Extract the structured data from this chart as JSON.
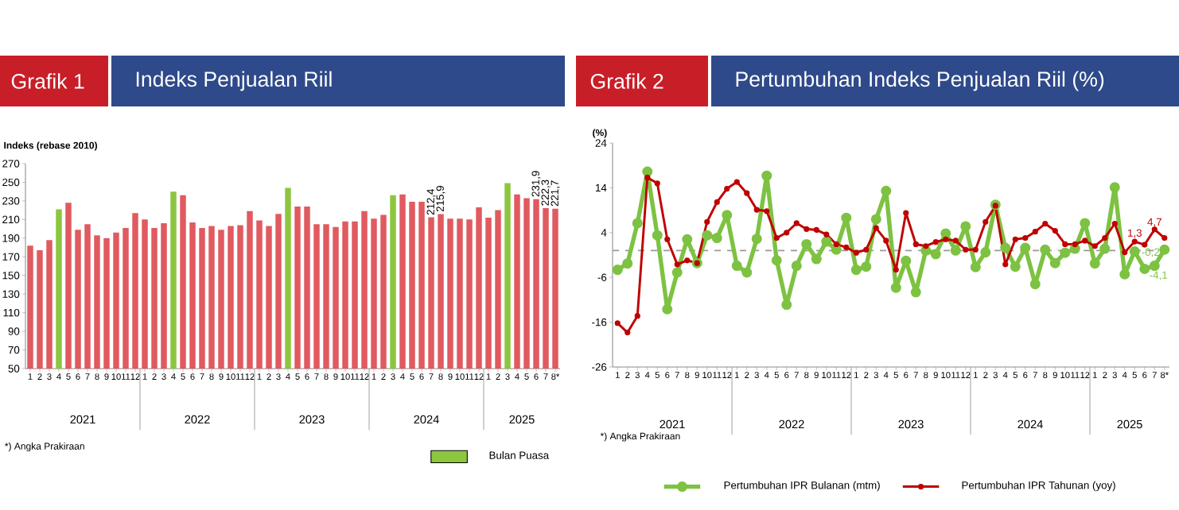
{
  "chart_data": [
    {
      "type": "bar",
      "title": "Grafik 1",
      "subtitle": "Indeks Penjualan Riil",
      "ylabel": "Indeks (rebase 2010)",
      "categories": [
        "1",
        "2",
        "3",
        "4",
        "5",
        "6",
        "7",
        "8",
        "9",
        "10",
        "11",
        "12",
        "1",
        "2",
        "3",
        "4",
        "5",
        "6",
        "7",
        "8",
        "9",
        "10",
        "11",
        "12",
        "1",
        "2",
        "3",
        "4",
        "5",
        "6",
        "7",
        "8",
        "9",
        "10",
        "11",
        "12",
        "1",
        "2",
        "3",
        "4",
        "5",
        "6",
        "7",
        "8",
        "9",
        "10",
        "11",
        "12",
        "1",
        "2",
        "3",
        "4",
        "5",
        "6",
        "7",
        "8*"
      ],
      "series": [
        {
          "color": "#e05a5f",
          "values": [
            182,
            177,
            188,
            null,
            228,
            199,
            205,
            193,
            190,
            196,
            201,
            217,
            210,
            201,
            206,
            null,
            236,
            207,
            201,
            203,
            199,
            203,
            204,
            219,
            209,
            203,
            216,
            null,
            224,
            224,
            205,
            205,
            202,
            208,
            208,
            219,
            211,
            215,
            null,
            237,
            229,
            229,
            212.4,
            215.9,
            211,
            211,
            210,
            223,
            212,
            220,
            null,
            237,
            233,
            231.9,
            222.3,
            221.7
          ],
          "value_labels": [
            null,
            null,
            null,
            null,
            null,
            null,
            null,
            null,
            null,
            null,
            null,
            null,
            null,
            null,
            null,
            null,
            null,
            null,
            null,
            null,
            null,
            null,
            null,
            null,
            null,
            null,
            null,
            null,
            null,
            null,
            null,
            null,
            null,
            null,
            null,
            null,
            null,
            null,
            null,
            null,
            null,
            null,
            "212,4",
            "215,9",
            null,
            null,
            null,
            null,
            null,
            null,
            null,
            null,
            null,
            "231,9",
            "222,3",
            "221,7"
          ]
        },
        {
          "name": "Bulan Puasa",
          "color": "#8cc63f",
          "values": [
            null,
            null,
            null,
            221,
            null,
            null,
            null,
            null,
            null,
            null,
            null,
            null,
            null,
            null,
            null,
            240,
            null,
            null,
            null,
            null,
            null,
            null,
            null,
            null,
            null,
            null,
            null,
            244,
            null,
            null,
            null,
            null,
            null,
            null,
            null,
            null,
            null,
            null,
            236,
            null,
            null,
            null,
            null,
            null,
            null,
            null,
            null,
            null,
            null,
            null,
            249,
            null,
            null,
            null,
            null,
            null
          ]
        }
      ],
      "stacked": true,
      "ylim": [
        50,
        270
      ],
      "yticks": [
        50,
        70,
        90,
        110,
        130,
        150,
        170,
        190,
        210,
        230,
        250,
        270
      ],
      "legend": "bottom right",
      "annotations": [
        "2021",
        "2022",
        "2023",
        "2024",
        "2025",
        "*) Angka Prakiraan"
      ]
    },
    {
      "type": "line",
      "title": "Grafik 2",
      "subtitle": "Pertumbuhan Indeks Penjualan Riil (%)",
      "ylabel": "(%)",
      "categories": [
        "1",
        "2",
        "3",
        "4",
        "5",
        "6",
        "7",
        "8",
        "9",
        "10",
        "11",
        "12",
        "1",
        "2",
        "3",
        "4",
        "5",
        "6",
        "7",
        "8",
        "9",
        "10",
        "11",
        "12",
        "1",
        "2",
        "3",
        "4",
        "5",
        "6",
        "7",
        "8",
        "9",
        "10",
        "11",
        "12",
        "1",
        "2",
        "3",
        "4",
        "5",
        "6",
        "7",
        "8",
        "9",
        "10",
        "11",
        "12",
        "1",
        "2",
        "3",
        "4",
        "5",
        "6",
        "7",
        "8*"
      ],
      "series": [
        {
          "name": "Pertumbuhan IPR Bulanan (mtm)",
          "color": "#7dc242",
          "values": [
            -4.3,
            -2.9,
            6.1,
            17.6,
            3.4,
            -13.1,
            -4.9,
            2.5,
            -2.8,
            3.4,
            2.8,
            7.9,
            -3.4,
            -4.9,
            2.6,
            16.7,
            -2.2,
            -12.1,
            -3.4,
            1.4,
            -1.9,
            2.0,
            0.2,
            7.3,
            -4.3,
            -3.6,
            7.0,
            13.3,
            -8.3,
            -2.3,
            -9.3,
            0.0,
            -0.8,
            3.8,
            0.0,
            5.4,
            -3.7,
            -0.4,
            10.2,
            0.6,
            -3.6,
            0.6,
            -7.5,
            0.2,
            -2.8,
            -0.5,
            0.4,
            6.1,
            -2.9,
            0.4,
            14.1,
            -5.3,
            -0.2,
            -4.1,
            -3.4,
            0.2
          ],
          "value_labels": [
            null,
            null,
            null,
            null,
            null,
            null,
            null,
            null,
            null,
            null,
            null,
            null,
            null,
            null,
            null,
            null,
            null,
            null,
            null,
            null,
            null,
            null,
            null,
            null,
            null,
            null,
            null,
            null,
            null,
            null,
            null,
            null,
            null,
            null,
            null,
            null,
            null,
            null,
            null,
            null,
            null,
            null,
            null,
            null,
            null,
            null,
            null,
            null,
            null,
            null,
            null,
            null,
            "-0,2",
            "-4,1",
            null,
            null
          ]
        },
        {
          "name": "Pertumbuhan IPR Tahunan (yoy)",
          "color": "#c00000",
          "values": [
            -16.2,
            -18.3,
            -14.6,
            16.3,
            15.0,
            2.5,
            -3.1,
            -2.2,
            -2.8,
            6.4,
            10.8,
            13.8,
            15.3,
            12.8,
            9.1,
            8.8,
            2.8,
            4.0,
            6.1,
            4.8,
            4.6,
            3.6,
            1.4,
            0.7,
            -0.5,
            0.2,
            5.0,
            2.2,
            -4.3,
            8.4,
            1.4,
            1.0,
            1.9,
            2.5,
            2.2,
            0.2,
            0.2,
            6.4,
            10.0,
            -3.1,
            2.5,
            2.8,
            4.2,
            6.0,
            4.4,
            1.4,
            1.4,
            2.2,
            1.0,
            2.8,
            6.0,
            -0.4,
            2.0,
            1.3,
            4.7,
            2.8
          ],
          "value_labels": [
            null,
            null,
            null,
            null,
            null,
            null,
            null,
            null,
            null,
            null,
            null,
            null,
            null,
            null,
            null,
            null,
            null,
            null,
            null,
            null,
            null,
            null,
            null,
            null,
            null,
            null,
            null,
            null,
            null,
            null,
            null,
            null,
            null,
            null,
            null,
            null,
            null,
            null,
            null,
            null,
            null,
            null,
            null,
            null,
            null,
            null,
            null,
            null,
            null,
            null,
            null,
            null,
            null,
            "1,3",
            "4,7",
            null
          ]
        }
      ],
      "ylim": [
        -26,
        24
      ],
      "yticks": [
        -26,
        -16,
        -6,
        4,
        14,
        24
      ],
      "marker": "circle",
      "legend": "bottom",
      "ref_lines": [
        {
          "axis": "y",
          "value": 0,
          "color": "#999999",
          "line_style": "dashed"
        }
      ],
      "annotations": [
        "2021",
        "2022",
        "2023",
        "2024",
        "2025",
        "*) Angka Prakiraan"
      ]
    }
  ]
}
